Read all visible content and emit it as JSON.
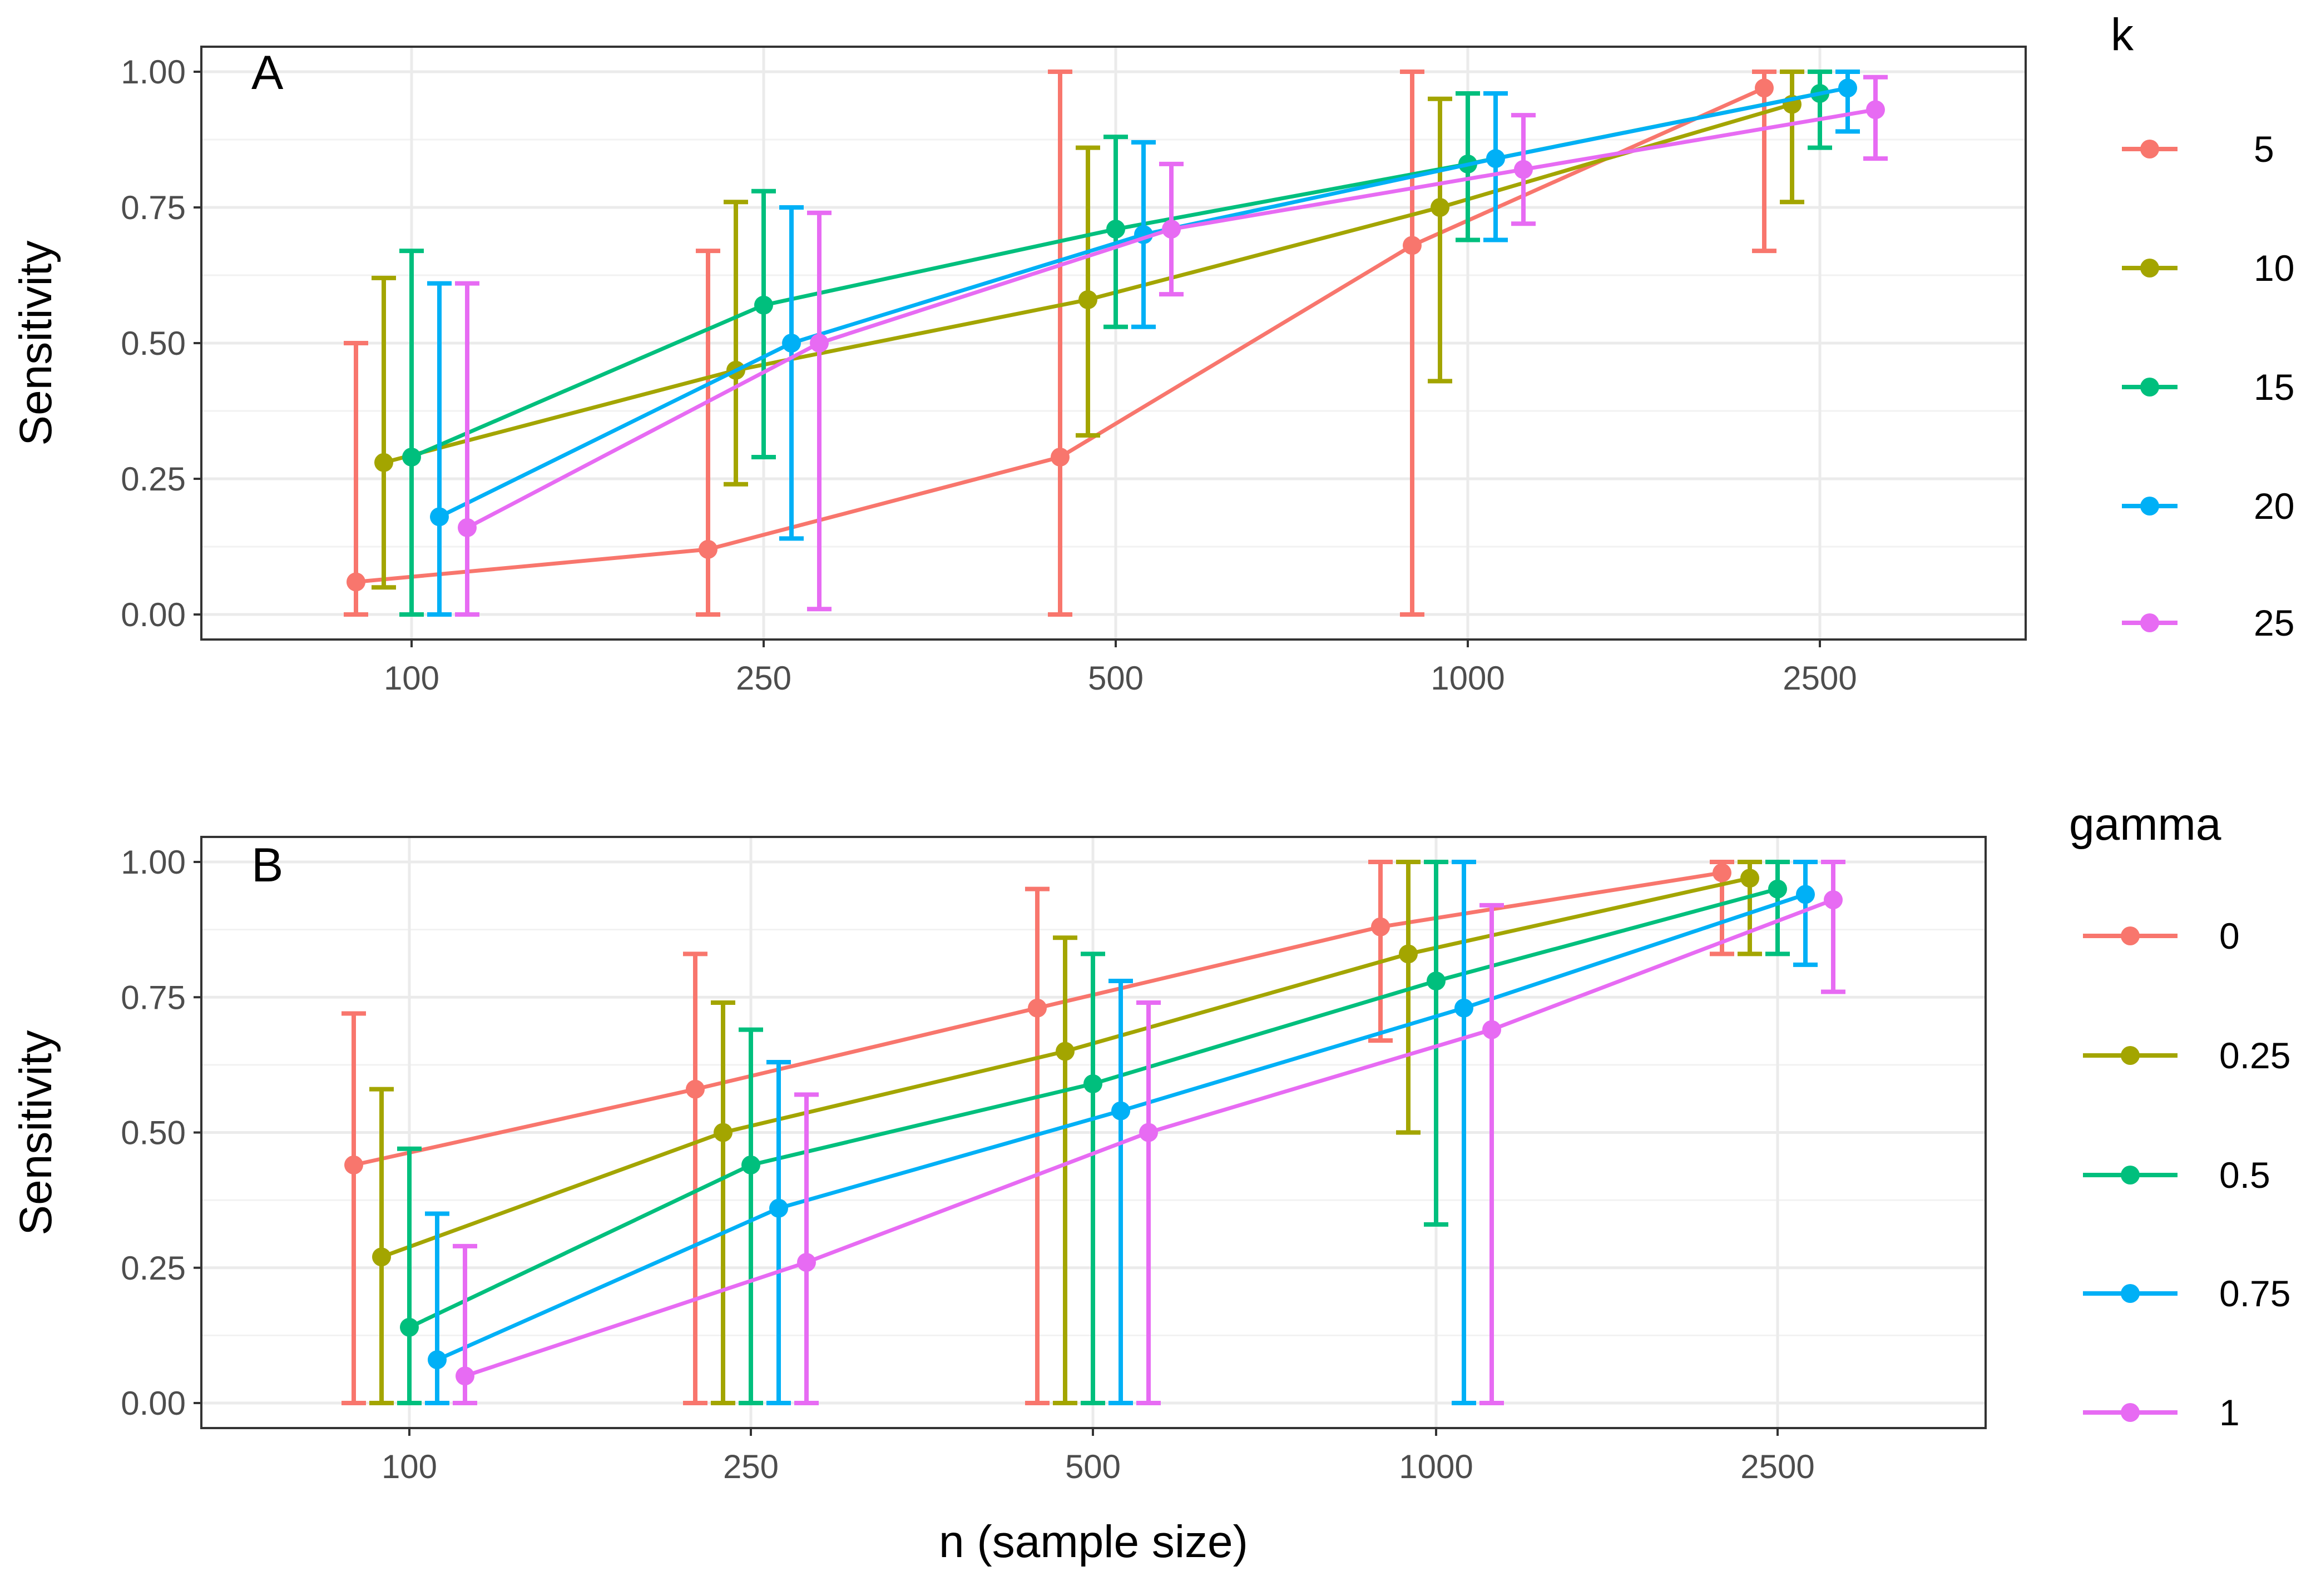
{
  "chart_data": [
    {
      "type": "line",
      "panel_label": "A",
      "xlabel": "n (sample size)",
      "ylabel": "Sensitivity",
      "categories": [
        "100",
        "250",
        "500",
        "1000",
        "2500"
      ],
      "ylim": [
        0,
        1
      ],
      "yticks": [
        "0.00",
        "0.25",
        "0.50",
        "0.75",
        "1.00"
      ],
      "grid": true,
      "legend": {
        "title": "k",
        "position": "right"
      },
      "series": [
        {
          "name": "5",
          "color": "#F8766D",
          "values": [
            0.06,
            0.12,
            0.29,
            0.68,
            0.97
          ],
          "lower": [
            0.0,
            0.0,
            0.0,
            0.0,
            0.67
          ],
          "upper": [
            0.5,
            0.67,
            1.0,
            1.0,
            1.0
          ]
        },
        {
          "name": "10",
          "color": "#A3A500",
          "values": [
            0.28,
            0.45,
            0.58,
            0.75,
            0.94
          ],
          "lower": [
            0.05,
            0.24,
            0.33,
            0.43,
            0.76
          ],
          "upper": [
            0.62,
            0.76,
            0.86,
            0.95,
            1.0
          ]
        },
        {
          "name": "15",
          "color": "#00BF7D",
          "values": [
            0.29,
            0.57,
            0.71,
            0.83,
            0.96
          ],
          "lower": [
            0.0,
            0.29,
            0.53,
            0.69,
            0.86
          ],
          "upper": [
            0.67,
            0.78,
            0.88,
            0.96,
            1.0
          ]
        },
        {
          "name": "20",
          "color": "#00B0F6",
          "values": [
            0.18,
            0.5,
            0.7,
            0.84,
            0.97
          ],
          "lower": [
            0.0,
            0.14,
            0.53,
            0.69,
            0.89
          ],
          "upper": [
            0.61,
            0.75,
            0.87,
            0.96,
            1.0
          ]
        },
        {
          "name": "25",
          "color": "#E76BF3",
          "values": [
            0.16,
            0.5,
            0.71,
            0.82,
            0.93
          ],
          "lower": [
            0.0,
            0.01,
            0.59,
            0.72,
            0.84
          ],
          "upper": [
            0.61,
            0.74,
            0.83,
            0.92,
            0.99
          ]
        }
      ]
    },
    {
      "type": "line",
      "panel_label": "B",
      "xlabel": "n (sample size)",
      "ylabel": "Sensitivity",
      "categories": [
        "100",
        "250",
        "500",
        "1000",
        "2500"
      ],
      "ylim": [
        0,
        1
      ],
      "yticks": [
        "0.00",
        "0.25",
        "0.50",
        "0.75",
        "1.00"
      ],
      "grid": true,
      "legend": {
        "title": "gamma",
        "position": "right"
      },
      "series": [
        {
          "name": "0",
          "color": "#F8766D",
          "values": [
            0.44,
            0.58,
            0.73,
            0.88,
            0.98
          ],
          "lower": [
            0.0,
            0.0,
            0.0,
            0.67,
            0.83
          ],
          "upper": [
            0.72,
            0.83,
            0.95,
            1.0,
            1.0
          ]
        },
        {
          "name": "0.25",
          "color": "#A3A500",
          "values": [
            0.27,
            0.5,
            0.65,
            0.83,
            0.97
          ],
          "lower": [
            0.0,
            0.0,
            0.0,
            0.5,
            0.83
          ],
          "upper": [
            0.58,
            0.74,
            0.86,
            1.0,
            1.0
          ]
        },
        {
          "name": "0.5",
          "color": "#00BF7D",
          "values": [
            0.14,
            0.44,
            0.59,
            0.78,
            0.95
          ],
          "lower": [
            0.0,
            0.0,
            0.0,
            0.33,
            0.83
          ],
          "upper": [
            0.47,
            0.69,
            0.83,
            1.0,
            1.0
          ]
        },
        {
          "name": "0.75",
          "color": "#00B0F6",
          "values": [
            0.08,
            0.36,
            0.54,
            0.73,
            0.94
          ],
          "lower": [
            0.0,
            0.0,
            0.0,
            0.0,
            0.81
          ],
          "upper": [
            0.35,
            0.63,
            0.78,
            1.0,
            1.0
          ]
        },
        {
          "name": "1",
          "color": "#E76BF3",
          "values": [
            0.05,
            0.26,
            0.5,
            0.69,
            0.93
          ],
          "lower": [
            0.0,
            0.0,
            0.0,
            0.0,
            0.76
          ],
          "upper": [
            0.29,
            0.57,
            0.74,
            0.92,
            1.0
          ]
        }
      ]
    }
  ]
}
